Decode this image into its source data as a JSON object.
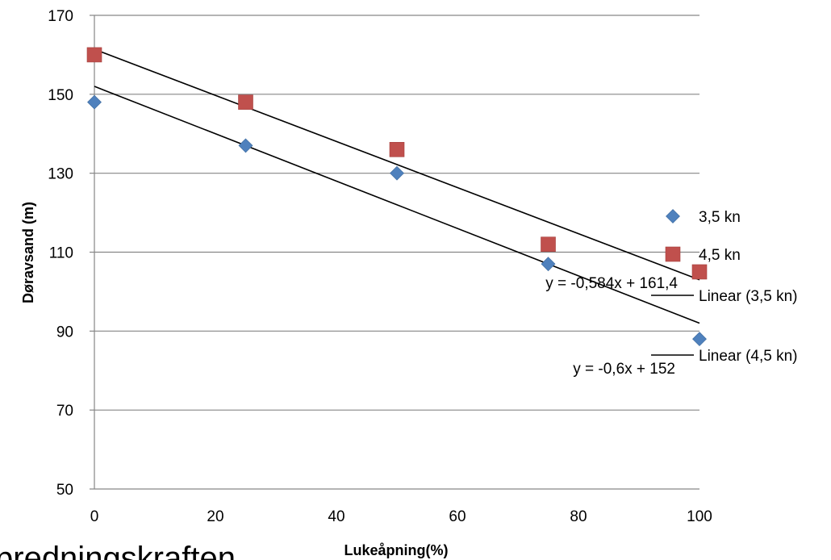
{
  "chart_data": {
    "type": "scatter",
    "title": "",
    "xlabel": "Lukeåpning(%)",
    "ylabel": "Døravsand (m)",
    "xlim": [
      0,
      100
    ],
    "ylim": [
      50,
      170
    ],
    "x_ticks": [
      "0",
      "20",
      "40",
      "60",
      "80",
      "100"
    ],
    "y_ticks": [
      "50",
      "70",
      "90",
      "110",
      "130",
      "150",
      "170"
    ],
    "grid": "horizontal",
    "legend_position": "right",
    "series": [
      {
        "name": "3,5 kn",
        "marker": "diamond",
        "color": "#4f81bd",
        "points": [
          [
            0,
            148
          ],
          [
            25,
            137
          ],
          [
            50,
            130
          ],
          [
            75,
            107
          ],
          [
            100,
            88
          ]
        ]
      },
      {
        "name": "4,5 kn",
        "marker": "square",
        "color": "#c0504d",
        "points": [
          [
            0,
            160
          ],
          [
            25,
            148
          ],
          [
            50,
            136
          ],
          [
            75,
            112
          ],
          [
            100,
            105
          ]
        ]
      }
    ],
    "trendlines": [
      {
        "name": "Linear (3,5 kn)",
        "slope": -0.6,
        "intercept": 152,
        "equation": "y = -0,6x + 152",
        "color": "#000000"
      },
      {
        "name": "Linear (4,5 kn)",
        "slope": -0.584,
        "intercept": 161.4,
        "equation": "y = -0,584x + 161,4",
        "color": "#000000"
      }
    ]
  },
  "caption_fragment": "predningskraften"
}
